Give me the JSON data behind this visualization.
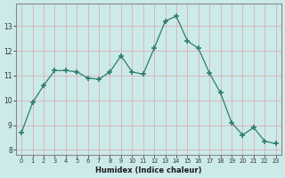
{
  "x": [
    0,
    1,
    2,
    3,
    4,
    5,
    6,
    7,
    8,
    9,
    10,
    11,
    12,
    13,
    14,
    15,
    16,
    17,
    18,
    19,
    20,
    21,
    22,
    23
  ],
  "y": [
    8.7,
    9.9,
    10.6,
    11.2,
    11.2,
    11.15,
    10.9,
    10.85,
    11.15,
    11.8,
    11.15,
    11.05,
    12.1,
    13.2,
    13.4,
    12.4,
    12.1,
    11.1,
    10.3,
    9.1,
    8.6,
    8.9,
    8.35,
    8.25
  ],
  "xlabel": "Humidex (Indice chaleur)",
  "ylim": [
    7.8,
    13.9
  ],
  "xlim": [
    -0.5,
    23.5
  ],
  "yticks": [
    8,
    9,
    10,
    11,
    12,
    13
  ],
  "xticks": [
    0,
    1,
    2,
    3,
    4,
    5,
    6,
    7,
    8,
    9,
    10,
    11,
    12,
    13,
    14,
    15,
    16,
    17,
    18,
    19,
    20,
    21,
    22,
    23
  ],
  "line_color": "#2d7d6d",
  "marker_color": "#2d7d6d",
  "bg_color": "#cceaea",
  "grid_color": "#d8b8b8",
  "spine_color": "#888888",
  "tick_label_color": "#333333",
  "xlabel_color": "#1a1a1a"
}
